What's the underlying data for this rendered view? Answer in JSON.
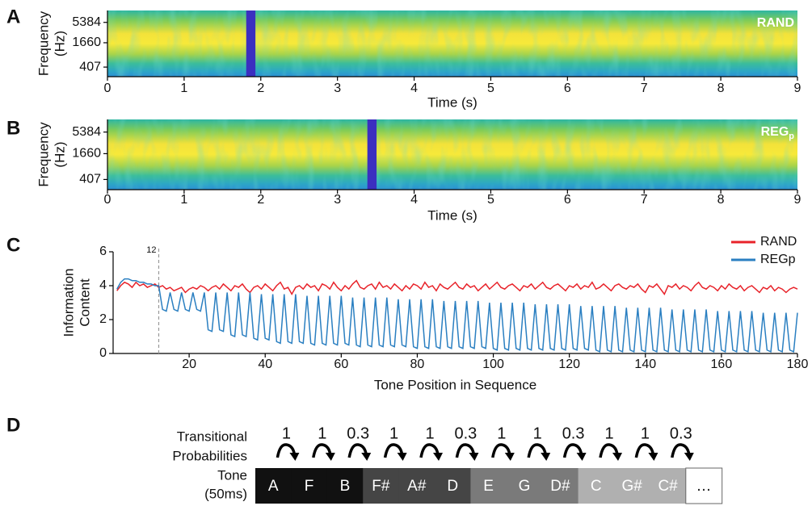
{
  "chart_data": [
    {
      "type": "spectrogram",
      "panel": "A",
      "label": "RAND",
      "xlabel": "Time (s)",
      "ylabel": [
        "Frequency",
        "(Hz)"
      ],
      "xlim": [
        0,
        9
      ],
      "xticks": [
        0,
        1,
        2,
        3,
        4,
        5,
        6,
        7,
        8,
        9
      ],
      "ylim": [
        234,
        10700
      ],
      "ylog": true,
      "yticks": [
        407,
        1660,
        5384
      ],
      "highlight": [
        1.81,
        1.93
      ],
      "highlight_color": "#3b2fc0"
    },
    {
      "type": "spectrogram",
      "panel": "B",
      "label": "REG",
      "label_sub": "p",
      "xlabel": "Time (s)",
      "ylabel": [
        "Frequency",
        "(Hz)"
      ],
      "xlim": [
        0,
        9
      ],
      "xticks": [
        0,
        1,
        2,
        3,
        4,
        5,
        6,
        7,
        8,
        9
      ],
      "ylim": [
        234,
        10700
      ],
      "ylog": true,
      "yticks": [
        407,
        1660,
        5384
      ],
      "highlight": [
        3.39,
        3.51
      ],
      "highlight_color": "#3b2fc0"
    },
    {
      "type": "line",
      "panel": "C",
      "xlabel": "Tone Position in Sequence",
      "ylabel": [
        "Information",
        "Content"
      ],
      "xlim": [
        0,
        180
      ],
      "xticks": [
        20,
        40,
        60,
        80,
        100,
        120,
        140,
        160,
        180
      ],
      "ylim": [
        0,
        6
      ],
      "yticks": [
        0,
        2,
        4,
        6
      ],
      "vline": 12,
      "legend": "upper right",
      "x": [
        1,
        2,
        3,
        4,
        5,
        6,
        7,
        8,
        9,
        10,
        11,
        12,
        13,
        14,
        15,
        16,
        17,
        18,
        19,
        20,
        21,
        22,
        23,
        24,
        25,
        26,
        27,
        28,
        29,
        30,
        31,
        32,
        33,
        34,
        35,
        36,
        37,
        38,
        39,
        40,
        41,
        42,
        43,
        44,
        45,
        46,
        47,
        48,
        49,
        50,
        51,
        52,
        53,
        54,
        55,
        56,
        57,
        58,
        59,
        60,
        61,
        62,
        63,
        64,
        65,
        66,
        67,
        68,
        69,
        70,
        71,
        72,
        73,
        74,
        75,
        76,
        77,
        78,
        79,
        80,
        81,
        82,
        83,
        84,
        85,
        86,
        87,
        88,
        89,
        90,
        91,
        92,
        93,
        94,
        95,
        96,
        97,
        98,
        99,
        100,
        101,
        102,
        103,
        104,
        105,
        106,
        107,
        108,
        109,
        110,
        111,
        112,
        113,
        114,
        115,
        116,
        117,
        118,
        119,
        120,
        121,
        122,
        123,
        124,
        125,
        126,
        127,
        128,
        129,
        130,
        131,
        132,
        133,
        134,
        135,
        136,
        137,
        138,
        139,
        140,
        141,
        142,
        143,
        144,
        145,
        146,
        147,
        148,
        149,
        150,
        151,
        152,
        153,
        154,
        155,
        156,
        157,
        158,
        159,
        160,
        161,
        162,
        163,
        164,
        165,
        166,
        167,
        168,
        169,
        170,
        171,
        172,
        173,
        174,
        175,
        176,
        177,
        178,
        179,
        180
      ],
      "series": [
        {
          "name": "RAND",
          "color": "#e8232a",
          "values": [
            3.7,
            4.0,
            4.2,
            4.1,
            3.9,
            4.2,
            4.0,
            4.1,
            3.9,
            4.0,
            4.1,
            3.9,
            4.0,
            3.8,
            3.9,
            3.7,
            3.8,
            3.9,
            3.6,
            3.8,
            3.9,
            3.8,
            4.0,
            3.9,
            3.7,
            3.9,
            4.0,
            3.8,
            4.1,
            3.9,
            3.7,
            4.0,
            3.9,
            4.1,
            3.8,
            3.6,
            3.9,
            4.0,
            3.8,
            4.1,
            3.9,
            3.7,
            4.0,
            4.2,
            3.8,
            3.9,
            3.5,
            3.9,
            4.0,
            3.8,
            4.1,
            3.9,
            4.0,
            3.7,
            4.1,
            4.0,
            3.8,
            4.2,
            3.9,
            3.7,
            4.0,
            3.8,
            4.1,
            4.3,
            3.9,
            3.8,
            4.0,
            4.1,
            3.8,
            4.2,
            3.9,
            4.0,
            3.8,
            4.1,
            3.9,
            3.7,
            4.0,
            3.8,
            4.1,
            4.0,
            3.8,
            4.2,
            3.9,
            4.0,
            3.7,
            4.1,
            3.9,
            3.8,
            4.0,
            4.2,
            3.9,
            3.8,
            4.1,
            3.9,
            4.0,
            3.7,
            3.9,
            4.1,
            3.8,
            4.0,
            4.2,
            3.9,
            3.8,
            4.0,
            4.1,
            3.9,
            3.7,
            4.0,
            3.9,
            4.1,
            3.8,
            4.0,
            4.2,
            3.9,
            3.8,
            4.0,
            4.1,
            3.9,
            3.7,
            4.0,
            3.9,
            4.1,
            3.8,
            4.0,
            3.9,
            4.2,
            3.8,
            3.9,
            4.1,
            3.9,
            3.7,
            4.0,
            4.1,
            3.9,
            3.8,
            4.0,
            3.9,
            4.1,
            3.8,
            3.6,
            4.0,
            3.9,
            4.1,
            3.8,
            3.5,
            4.0,
            3.9,
            4.1,
            3.8,
            4.0,
            3.9,
            3.7,
            4.0,
            4.2,
            3.9,
            3.8,
            4.0,
            3.9,
            3.7,
            4.0,
            3.8,
            4.1,
            3.9,
            3.8,
            4.0,
            3.7,
            3.9,
            4.0,
            3.8,
            3.6,
            3.9,
            3.8,
            4.0,
            3.7,
            3.9,
            3.8,
            3.6,
            3.8,
            3.9,
            3.8
          ]
        },
        {
          "name": "REGp",
          "color": "#2a7fc1",
          "values": [
            3.8,
            4.2,
            4.4,
            4.4,
            4.3,
            4.3,
            4.2,
            4.2,
            4.1,
            4.1,
            4.0,
            4.0,
            2.6,
            2.5,
            3.6,
            2.6,
            2.5,
            3.6,
            2.6,
            2.5,
            3.6,
            2.6,
            2.5,
            3.6,
            1.4,
            1.3,
            3.6,
            1.4,
            1.3,
            3.6,
            1.1,
            1.0,
            3.6,
            1.1,
            1.0,
            3.6,
            0.9,
            0.8,
            3.5,
            0.9,
            0.8,
            3.5,
            0.7,
            0.6,
            3.5,
            0.7,
            0.6,
            3.5,
            0.7,
            0.6,
            3.4,
            0.6,
            0.5,
            3.4,
            0.6,
            0.5,
            3.4,
            0.6,
            0.5,
            3.4,
            0.6,
            0.5,
            3.3,
            0.5,
            0.4,
            3.3,
            0.5,
            0.4,
            3.3,
            0.5,
            0.4,
            3.3,
            0.5,
            0.4,
            3.2,
            0.5,
            0.4,
            3.2,
            0.4,
            0.3,
            3.2,
            0.4,
            0.3,
            3.2,
            0.4,
            0.3,
            3.1,
            0.4,
            0.3,
            3.1,
            0.4,
            0.3,
            3.1,
            0.4,
            0.3,
            3.1,
            0.4,
            0.3,
            3.0,
            0.3,
            0.2,
            3.0,
            0.3,
            0.2,
            3.0,
            0.3,
            0.2,
            3.0,
            0.3,
            0.2,
            2.9,
            0.3,
            0.2,
            2.9,
            0.3,
            0.2,
            2.9,
            0.3,
            0.2,
            2.9,
            0.3,
            0.2,
            2.8,
            0.3,
            0.2,
            2.8,
            0.2,
            0.1,
            2.8,
            0.2,
            0.1,
            2.8,
            0.2,
            0.1,
            2.7,
            0.2,
            0.1,
            2.7,
            0.2,
            0.1,
            2.7,
            0.2,
            0.1,
            2.7,
            0.2,
            0.1,
            2.6,
            0.2,
            0.1,
            2.6,
            0.2,
            0.1,
            2.6,
            0.2,
            0.1,
            2.6,
            0.2,
            0.1,
            2.5,
            0.2,
            0.1,
            2.5,
            0.2,
            0.1,
            2.5,
            0.2,
            0.1,
            2.5,
            0.2,
            0.1,
            2.4,
            0.2,
            0.1,
            2.4,
            0.2,
            0.1,
            2.4,
            0.2,
            0.1,
            2.4
          ]
        }
      ]
    }
  ],
  "sequence": {
    "panel": "D",
    "row_labels": [
      "Transitional",
      "Probabilities",
      "Tone",
      "(50ms)"
    ],
    "probabilities": [
      1,
      1,
      0.3,
      1,
      1,
      0.3,
      1,
      1,
      0.3,
      1,
      1,
      0.3
    ],
    "tones": [
      "A",
      "F",
      "B",
      "F#",
      "A#",
      "D",
      "E",
      "G",
      "D#",
      "C",
      "G#",
      "C#",
      "…"
    ]
  }
}
